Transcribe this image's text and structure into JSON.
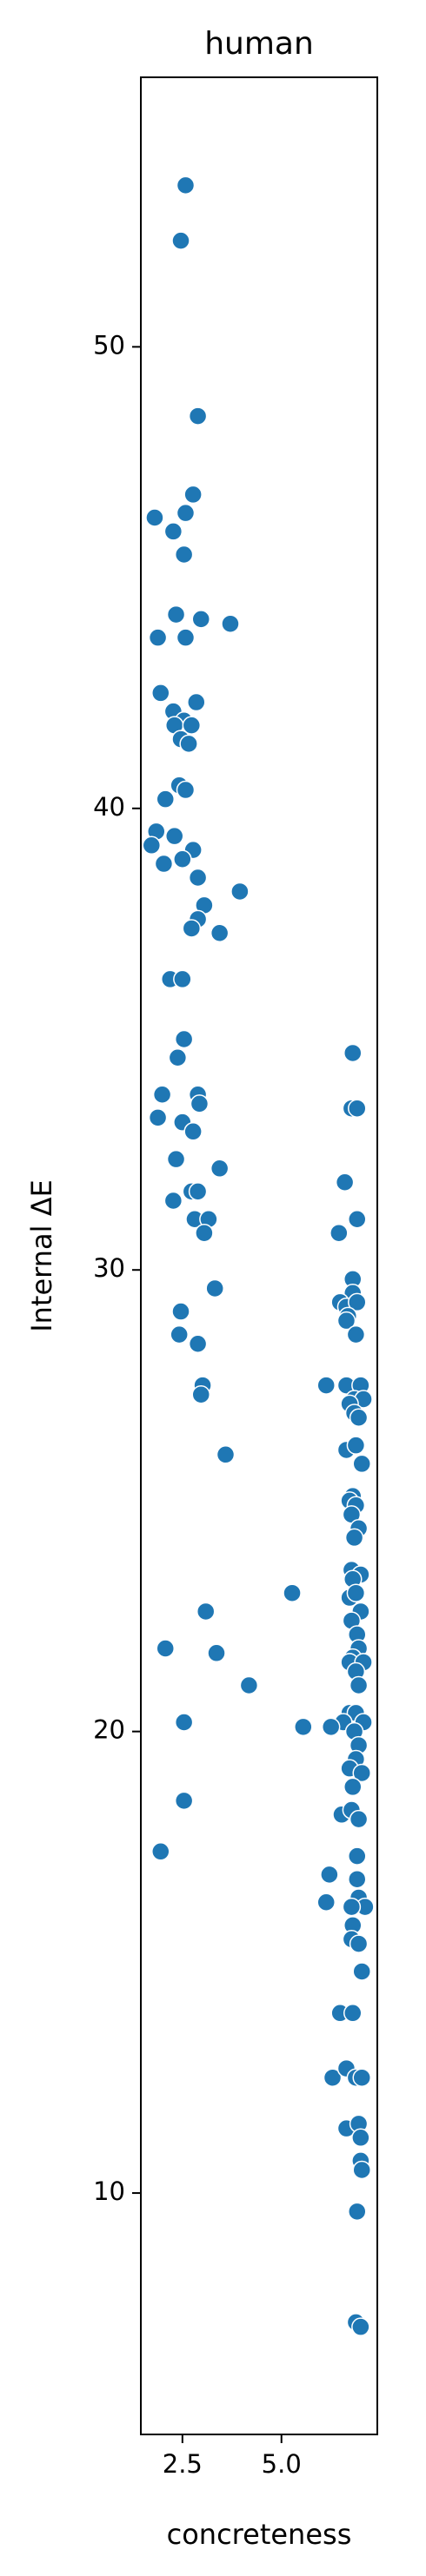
{
  "chart_data": {
    "type": "scatter",
    "title": "human",
    "x_label": "concreteness",
    "y_label": "Internal ΔE",
    "color": "#1f77b4",
    "xlim": [
      1.45,
      7.42
    ],
    "ylim": [
      4.77,
      55.84
    ],
    "xticks": [
      2.5,
      {
        "value": 5,
        "label": "5.0"
      }
    ],
    "yticks": [
      10,
      20,
      30,
      40,
      50
    ],
    "x": [
      2.58,
      2.46,
      2.89,
      2.77,
      1.8,
      2.58,
      2.27,
      2.54,
      2.34,
      2.97,
      3.71,
      1.88,
      2.58,
      1.95,
      2.85,
      2.27,
      2.54,
      2.3,
      2.73,
      2.46,
      2.66,
      2.42,
      2.58,
      2.07,
      1.84,
      2.3,
      1.72,
      2.77,
      2.5,
      2.03,
      2.89,
      3.95,
      3.05,
      2.89,
      2.73,
      3.44,
      2.19,
      2.5,
      2.54,
      2.38,
      2.89,
      1.99,
      2.93,
      1.88,
      2.5,
      2.77,
      2.34,
      3.44,
      2.73,
      2.89,
      2.27,
      2.81,
      3.16,
      3.05,
      3.32,
      2.46,
      2.42,
      2.89,
      3.01,
      2.97,
      3.59,
      5.27,
      3.09,
      2.07,
      3.36,
      4.18,
      2.54,
      5.55,
      2.54,
      1.95,
      6.8,
      6.77,
      6.91,
      6.6,
      6.91,
      6.45,
      6.8,
      6.8,
      6.48,
      6.64,
      6.91,
      6.68,
      6.64,
      6.88,
      6.13,
      6.64,
      7.0,
      6.84,
      7.07,
      6.72,
      6.84,
      6.95,
      6.64,
      6.88,
      7.03,
      6.8,
      6.72,
      6.88,
      6.77,
      6.95,
      6.84,
      6.77,
      7.0,
      6.8,
      6.72,
      6.88,
      7.0,
      6.77,
      6.91,
      6.95,
      6.8,
      6.72,
      7.07,
      6.88,
      6.95,
      6.72,
      6.88,
      6.56,
      7.07,
      6.25,
      6.84,
      6.95,
      6.88,
      6.72,
      7.03,
      6.8,
      6.52,
      6.77,
      6.95,
      6.91,
      6.21,
      6.91,
      6.95,
      6.13,
      7.11,
      6.77,
      6.8,
      6.77,
      6.95,
      7.03,
      6.48,
      6.8,
      6.29,
      6.64,
      6.88,
      7.03,
      6.64,
      6.95,
      7.0,
      7.0,
      7.03,
      6.91,
      6.88,
      7.0
    ],
    "values": [
      53.5,
      52.3,
      48.5,
      46.8,
      46.3,
      46.4,
      46.0,
      45.5,
      44.2,
      44.1,
      44.0,
      43.7,
      43.7,
      42.5,
      42.3,
      42.1,
      41.9,
      41.8,
      41.8,
      41.5,
      41.4,
      40.5,
      40.4,
      40.2,
      39.5,
      39.4,
      39.2,
      39.1,
      38.9,
      38.8,
      38.5,
      38.2,
      37.9,
      37.6,
      37.4,
      37.3,
      36.3,
      36.3,
      35.0,
      34.6,
      33.8,
      33.8,
      33.6,
      33.3,
      33.2,
      33.0,
      32.4,
      32.2,
      31.7,
      31.7,
      31.5,
      31.1,
      31.1,
      30.8,
      29.6,
      29.1,
      28.6,
      28.4,
      27.5,
      27.3,
      26.0,
      23.0,
      22.6,
      21.8,
      21.7,
      21.0,
      20.2,
      20.1,
      18.5,
      17.4,
      34.7,
      33.5,
      33.5,
      31.9,
      31.1,
      30.8,
      29.8,
      29.5,
      29.3,
      29.2,
      29.3,
      29.0,
      28.9,
      28.6,
      27.5,
      27.5,
      27.5,
      27.2,
      27.2,
      27.1,
      26.9,
      26.8,
      26.1,
      26.2,
      25.8,
      25.1,
      25.0,
      24.9,
      24.7,
      24.4,
      24.2,
      23.5,
      23.4,
      23.3,
      22.9,
      23.0,
      22.6,
      22.4,
      22.1,
      21.8,
      21.6,
      21.5,
      21.5,
      21.3,
      21.0,
      20.4,
      20.4,
      20.2,
      20.2,
      20.1,
      20.0,
      19.7,
      19.4,
      19.2,
      19.1,
      18.8,
      18.2,
      18.3,
      18.1,
      17.3,
      16.9,
      16.8,
      16.4,
      16.3,
      16.2,
      16.2,
      15.8,
      15.5,
      15.4,
      14.8,
      13.9,
      13.9,
      12.5,
      12.7,
      12.5,
      12.5,
      11.4,
      11.5,
      11.2,
      10.7,
      10.5,
      9.6,
      7.2,
      7.1
    ]
  }
}
